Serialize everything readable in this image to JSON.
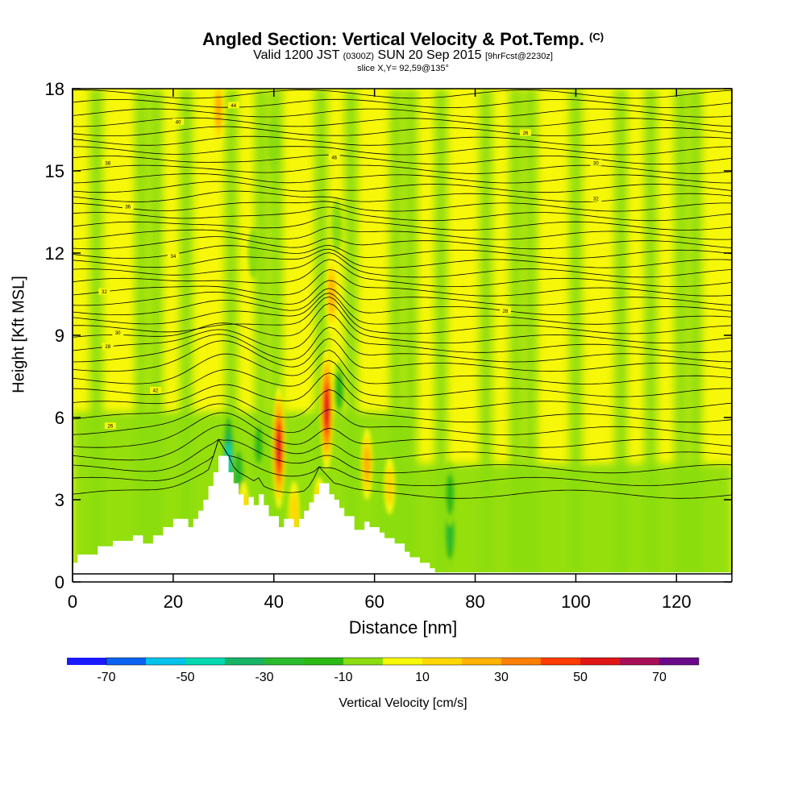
{
  "chart_data": {
    "type": "contour-cross-section",
    "title": "Angled Section: Vertical Velocity & Pot.Temp.",
    "title_unit": "(C)",
    "subtitle_parts": [
      "Valid 1200 JST",
      "(0300Z)",
      "SUN 20 Sep 2015",
      "[9hrFcst@2230z]"
    ],
    "slice_label": "slice X,Y= 92,59@135°",
    "xlabel": "Distance [nm]",
    "ylabel": "Height [Kft MSL]",
    "xlim": [
      0,
      131
    ],
    "ylim": [
      0,
      18
    ],
    "xticks": [
      "0",
      "20",
      "40",
      "60",
      "80",
      "100",
      "120"
    ],
    "xtick_values": [
      0,
      20,
      40,
      60,
      80,
      100,
      120
    ],
    "yticks": [
      "0",
      "3",
      "6",
      "9",
      "12",
      "15",
      "18"
    ],
    "ytick_values": [
      0,
      3,
      6,
      9,
      12,
      15,
      18
    ],
    "terrain": [
      {
        "x": 0,
        "h": 0.7
      },
      {
        "x": 1,
        "h": 1.0
      },
      {
        "x": 5,
        "h": 1.3
      },
      {
        "x": 8,
        "h": 1.5
      },
      {
        "x": 12,
        "h": 1.7
      },
      {
        "x": 14,
        "h": 1.4
      },
      {
        "x": 16,
        "h": 1.7
      },
      {
        "x": 18,
        "h": 2.0
      },
      {
        "x": 20,
        "h": 2.3
      },
      {
        "x": 23,
        "h": 2.0
      },
      {
        "x": 24,
        "h": 2.3
      },
      {
        "x": 25,
        "h": 2.6
      },
      {
        "x": 26,
        "h": 3.0
      },
      {
        "x": 27,
        "h": 3.5
      },
      {
        "x": 28,
        "h": 4.0
      },
      {
        "x": 29,
        "h": 4.6
      },
      {
        "x": 31,
        "h": 4.0
      },
      {
        "x": 32,
        "h": 3.6
      },
      {
        "x": 33,
        "h": 3.2
      },
      {
        "x": 34,
        "h": 2.8
      },
      {
        "x": 35,
        "h": 3.1
      },
      {
        "x": 36,
        "h": 2.8
      },
      {
        "x": 37,
        "h": 3.2
      },
      {
        "x": 38,
        "h": 2.8
      },
      {
        "x": 39,
        "h": 2.4
      },
      {
        "x": 41,
        "h": 2.0
      },
      {
        "x": 42,
        "h": 2.3
      },
      {
        "x": 44,
        "h": 2.0
      },
      {
        "x": 45,
        "h": 2.3
      },
      {
        "x": 46,
        "h": 2.6
      },
      {
        "x": 47,
        "h": 2.9
      },
      {
        "x": 48,
        "h": 3.2
      },
      {
        "x": 49,
        "h": 3.6
      },
      {
        "x": 51,
        "h": 3.2
      },
      {
        "x": 52,
        "h": 3.0
      },
      {
        "x": 53,
        "h": 2.7
      },
      {
        "x": 54,
        "h": 2.4
      },
      {
        "x": 56,
        "h": 1.9
      },
      {
        "x": 58,
        "h": 2.2
      },
      {
        "x": 59,
        "h": 2.0
      },
      {
        "x": 61,
        "h": 1.8
      },
      {
        "x": 62,
        "h": 1.6
      },
      {
        "x": 64,
        "h": 1.4
      },
      {
        "x": 66,
        "h": 1.1
      },
      {
        "x": 67,
        "h": 0.9
      },
      {
        "x": 69,
        "h": 0.7
      },
      {
        "x": 71,
        "h": 0.5
      },
      {
        "x": 72,
        "h": 0.35
      }
    ],
    "updrafts": [
      {
        "x": 41,
        "h": 4.9,
        "w": 60
      },
      {
        "x": 50.5,
        "h": 6.3,
        "w": 60
      },
      {
        "x": 51.5,
        "h": 10.5,
        "w": 30
      },
      {
        "x": 58.5,
        "h": 4.3,
        "w": 25
      },
      {
        "x": 29,
        "h": 17.2,
        "w": 25
      },
      {
        "x": 34,
        "h": 2.5,
        "w": 20
      },
      {
        "x": 44,
        "h": 2.5,
        "w": 20
      },
      {
        "x": 49,
        "h": 2.8,
        "w": 15
      },
      {
        "x": 63,
        "h": 3.5,
        "w": 15
      }
    ],
    "downdrafts": [
      {
        "x": 31,
        "h": 4.5,
        "w": -45
      },
      {
        "x": 33,
        "h": 3.7,
        "w": -30
      },
      {
        "x": 37,
        "h": 5.0,
        "w": -15
      },
      {
        "x": 53,
        "h": 7.0,
        "w": -15
      },
      {
        "x": 75,
        "h": 1.8,
        "w": -25
      },
      {
        "x": 75,
        "h": 3.2,
        "w": -20
      },
      {
        "x": 40,
        "h": 16.0,
        "w": -12
      },
      {
        "x": 52.5,
        "h": 13.0,
        "w": -12
      },
      {
        "x": 36,
        "h": 12.0,
        "w": -10
      }
    ],
    "pot_temp_labels": [
      "26",
      "28",
      "30",
      "32",
      "34",
      "36",
      "38",
      "40",
      "42",
      "44",
      "46"
    ],
    "colorbar": {
      "label": "Vertical Velocity [cm/s]",
      "tick_labels": [
        "-70",
        "-50",
        "-30",
        "-10",
        "10",
        "30",
        "50",
        "70"
      ],
      "tick_values": [
        -70,
        -50,
        -30,
        -10,
        10,
        30,
        50,
        70
      ],
      "bins": [
        -80,
        -70,
        -60,
        -50,
        -40,
        -30,
        -20,
        -10,
        0,
        10,
        20,
        30,
        40,
        50,
        60,
        70,
        80
      ],
      "colors": [
        "#1a1aff",
        "#0a62f2",
        "#00c2ea",
        "#00d8b0",
        "#18b466",
        "#2aba2e",
        "#2bba14",
        "#8bdd0f",
        "#f7f709",
        "#ffd700",
        "#ffb200",
        "#ff7f00",
        "#ff3b00",
        "#e01515",
        "#a80e55",
        "#6a0a8a"
      ]
    }
  }
}
